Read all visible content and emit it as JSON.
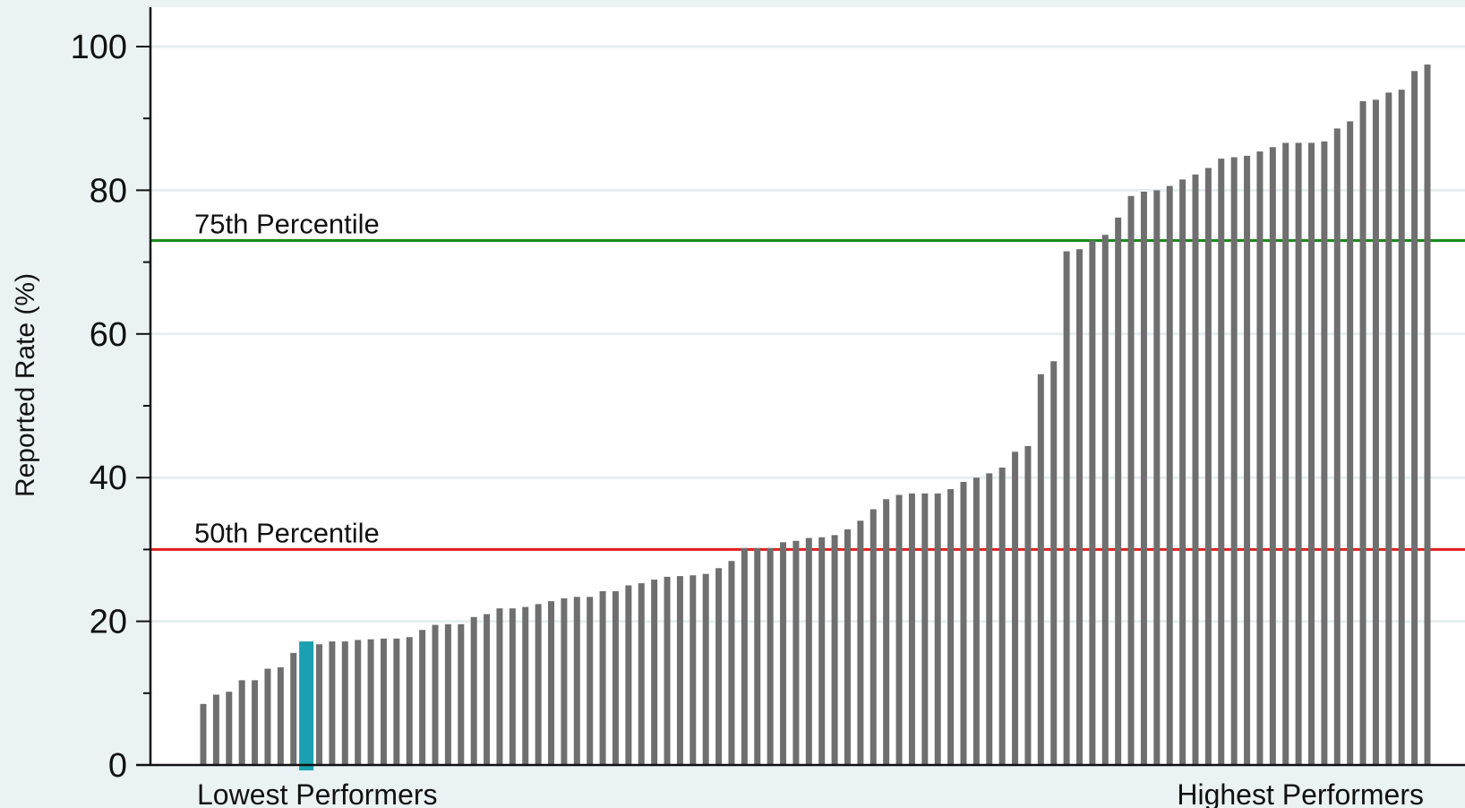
{
  "chart_data": {
    "type": "bar",
    "ylabel": "Reported Rate (%)",
    "ylim": [
      0,
      100
    ],
    "yticks": [
      0,
      20,
      40,
      60,
      80,
      100
    ],
    "ytick_labels": [
      "0",
      "20",
      "40",
      "60",
      "80",
      "100"
    ],
    "grid": true,
    "x_end_labels": {
      "left": "Lowest Performers",
      "right": "Highest Performers"
    },
    "reference_lines": [
      {
        "label": "75th Percentile",
        "value": 73,
        "color": "#1a8a1a"
      },
      {
        "label": "50th Percentile",
        "value": 30,
        "color": "#e01e1e"
      }
    ],
    "bar_color": "#6f6f6f",
    "highlight_color": "#1aa0b0",
    "highlight_index": 8,
    "values": [
      8.5,
      9.8,
      10.2,
      11.8,
      11.8,
      13.4,
      13.6,
      15.6,
      17.2,
      16.8,
      17.2,
      17.2,
      17.4,
      17.5,
      17.6,
      17.6,
      17.8,
      18.8,
      19.5,
      19.6,
      19.6,
      20.6,
      21.0,
      21.8,
      21.8,
      22.0,
      22.4,
      22.8,
      23.2,
      23.4,
      23.4,
      24.2,
      24.2,
      25.0,
      25.3,
      25.8,
      26.2,
      26.3,
      26.4,
      26.6,
      27.4,
      28.4,
      30.2,
      30.2,
      30.2,
      31.0,
      31.2,
      31.6,
      31.7,
      32.0,
      32.8,
      34.0,
      35.6,
      37.0,
      37.6,
      37.8,
      37.8,
      37.8,
      38.4,
      39.4,
      40.0,
      40.6,
      41.4,
      43.6,
      44.4,
      54.4,
      56.2,
      71.5,
      71.8,
      73.0,
      73.8,
      76.2,
      79.2,
      79.8,
      80.0,
      80.6,
      81.5,
      82.2,
      83.1,
      84.4,
      84.6,
      84.8,
      85.4,
      86.0,
      86.6,
      86.6,
      86.6,
      86.8,
      88.6,
      89.6,
      92.4,
      92.6,
      93.6,
      94.0,
      96.6,
      97.5
    ]
  }
}
